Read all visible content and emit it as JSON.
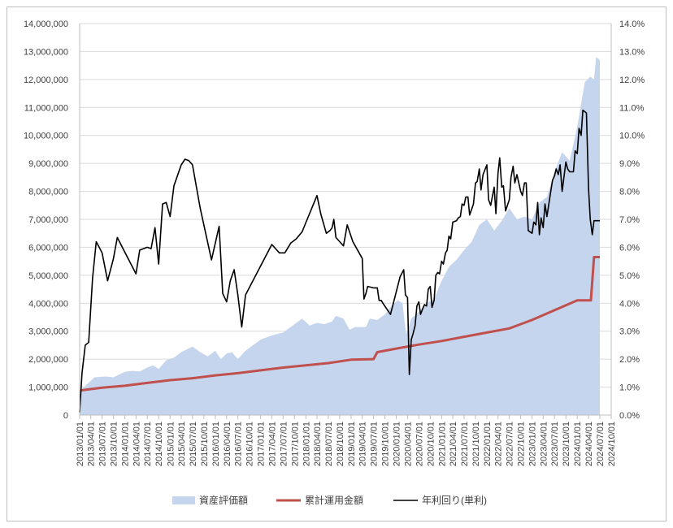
{
  "chart_data": {
    "type": "line",
    "colors": {
      "area": "#c5d5ee",
      "invested": "#c0504d",
      "yield": "#000000",
      "grid": "#d9d9d9",
      "axis": "#bfbfbf"
    },
    "x_range": [
      "2013/01/01",
      "2024/10/01"
    ],
    "x_ticks": [
      "2013/01/01",
      "2013/04/01",
      "2013/07/01",
      "2013/10/01",
      "2014/01/01",
      "2014/04/01",
      "2014/07/01",
      "2014/10/01",
      "2015/01/01",
      "2015/04/01",
      "2015/07/01",
      "2015/10/01",
      "2016/01/01",
      "2016/04/01",
      "2016/07/01",
      "2016/10/01",
      "2017/01/01",
      "2017/04/01",
      "2017/07/01",
      "2017/10/01",
      "2018/01/01",
      "2018/04/01",
      "2018/07/01",
      "2018/10/01",
      "2019/01/01",
      "2019/04/01",
      "2019/07/01",
      "2019/10/01",
      "2020/01/01",
      "2020/04/01",
      "2020/07/01",
      "2020/10/01",
      "2021/01/01",
      "2021/04/01",
      "2021/07/01",
      "2021/10/01",
      "2022/01/01",
      "2022/04/01",
      "2022/07/01",
      "2022/10/01",
      "2023/01/01",
      "2023/04/01",
      "2023/07/01",
      "2023/10/01",
      "2024/01/01",
      "2024/04/01",
      "2024/07/01",
      "2024/10/01"
    ],
    "y_left": {
      "range": [
        0,
        14000000
      ],
      "ticks": [
        "0",
        "1,000,000",
        "2,000,000",
        "3,000,000",
        "4,000,000",
        "5,000,000",
        "6,000,000",
        "7,000,000",
        "8,000,000",
        "9,000,000",
        "10,000,000",
        "11,000,000",
        "12,000,000",
        "13,000,000",
        "14,000,000"
      ]
    },
    "y_right": {
      "range": [
        0,
        14
      ],
      "ticks": [
        "0.0%",
        "1.0%",
        "2.0%",
        "3.0%",
        "4.0%",
        "5.0%",
        "6.0%",
        "7.0%",
        "8.0%",
        "9.0%",
        "10.0%",
        "11.0%",
        "12.0%",
        "13.0%",
        "14.0%"
      ]
    },
    "legend_position": "bottom",
    "series": [
      {
        "name": "資産評価額",
        "kind": "area",
        "axis": "left",
        "points": [
          [
            "2013/01/01",
            850000
          ],
          [
            "2013/03/01",
            1100000
          ],
          [
            "2013/05/01",
            1350000
          ],
          [
            "2013/08/01",
            1380000
          ],
          [
            "2013/10/01",
            1350000
          ],
          [
            "2014/01/01",
            1550000
          ],
          [
            "2014/03/01",
            1580000
          ],
          [
            "2014/05/01",
            1560000
          ],
          [
            "2014/07/01",
            1700000
          ],
          [
            "2014/08/15",
            1780000
          ],
          [
            "2014/10/01",
            1650000
          ],
          [
            "2014/12/01",
            1960000
          ],
          [
            "2015/02/01",
            2050000
          ],
          [
            "2015/04/01",
            2250000
          ],
          [
            "2015/07/01",
            2450000
          ],
          [
            "2015/09/01",
            2250000
          ],
          [
            "2015/11/01",
            2100000
          ],
          [
            "2016/01/01",
            2300000
          ],
          [
            "2016/02/15",
            2000000
          ],
          [
            "2016/04/01",
            2200000
          ],
          [
            "2016/05/15",
            2250000
          ],
          [
            "2016/07/01",
            2000000
          ],
          [
            "2016/09/01",
            2300000
          ],
          [
            "2017/01/01",
            2700000
          ],
          [
            "2017/04/01",
            2850000
          ],
          [
            "2017/07/01",
            2950000
          ],
          [
            "2017/10/01",
            3250000
          ],
          [
            "2017/12/01",
            3450000
          ],
          [
            "2018/02/01",
            3200000
          ],
          [
            "2018/04/01",
            3300000
          ],
          [
            "2018/06/01",
            3250000
          ],
          [
            "2018/08/01",
            3350000
          ],
          [
            "2018/09/01",
            3550000
          ],
          [
            "2018/11/01",
            3450000
          ],
          [
            "2018/12/20",
            3050000
          ],
          [
            "2019/02/01",
            3150000
          ],
          [
            "2019/05/01",
            3150000
          ],
          [
            "2019/06/01",
            3450000
          ],
          [
            "2019/08/01",
            3400000
          ],
          [
            "2019/10/01",
            3600000
          ],
          [
            "2019/12/01",
            3950000
          ],
          [
            "2020/01/15",
            4100000
          ],
          [
            "2020/02/20",
            4000000
          ],
          [
            "2020/03/20",
            2900000
          ],
          [
            "2020/05/01",
            3450000
          ],
          [
            "2020/07/01",
            3700000
          ],
          [
            "2020/09/01",
            4000000
          ],
          [
            "2020/11/01",
            4150000
          ],
          [
            "2021/01/01",
            4800000
          ],
          [
            "2021/03/01",
            5300000
          ],
          [
            "2021/05/01",
            5550000
          ],
          [
            "2021/07/01",
            5900000
          ],
          [
            "2021/09/01",
            6200000
          ],
          [
            "2021/11/01",
            6800000
          ],
          [
            "2022/01/01",
            7000000
          ],
          [
            "2022/03/01",
            6600000
          ],
          [
            "2022/05/01",
            6950000
          ],
          [
            "2022/07/01",
            7400000
          ],
          [
            "2022/09/01",
            7000000
          ],
          [
            "2022/11/01",
            7100000
          ],
          [
            "2023/01/01",
            7000000
          ],
          [
            "2023/03/01",
            7600000
          ],
          [
            "2023/05/01",
            7800000
          ],
          [
            "2023/07/01",
            8700000
          ],
          [
            "2023/09/01",
            9400000
          ],
          [
            "2023/11/01",
            9100000
          ],
          [
            "2024/01/01",
            10300000
          ],
          [
            "2024/03/01",
            11900000
          ],
          [
            "2024/04/15",
            12100000
          ],
          [
            "2024/05/15",
            12000000
          ],
          [
            "2024/06/01",
            12800000
          ],
          [
            "2024/07/01",
            12700000
          ]
        ]
      },
      {
        "name": "累計運用金額",
        "kind": "line",
        "axis": "left",
        "points": [
          [
            "2013/01/01",
            880000
          ],
          [
            "2013/07/01",
            980000
          ],
          [
            "2014/01/01",
            1050000
          ],
          [
            "2014/07/01",
            1150000
          ],
          [
            "2015/01/01",
            1250000
          ],
          [
            "2015/07/01",
            1320000
          ],
          [
            "2016/01/01",
            1420000
          ],
          [
            "2016/07/01",
            1500000
          ],
          [
            "2017/01/01",
            1600000
          ],
          [
            "2017/07/01",
            1700000
          ],
          [
            "2018/01/01",
            1780000
          ],
          [
            "2018/07/01",
            1860000
          ],
          [
            "2019/01/01",
            1980000
          ],
          [
            "2019/07/01",
            2000000
          ],
          [
            "2019/08/01",
            2250000
          ],
          [
            "2020/01/01",
            2380000
          ],
          [
            "2020/07/01",
            2520000
          ],
          [
            "2021/01/01",
            2650000
          ],
          [
            "2021/07/01",
            2800000
          ],
          [
            "2022/01/01",
            2950000
          ],
          [
            "2022/07/01",
            3100000
          ],
          [
            "2023/01/01",
            3400000
          ],
          [
            "2023/07/01",
            3750000
          ],
          [
            "2024/01/01",
            4100000
          ],
          [
            "2024/04/20",
            4100000
          ],
          [
            "2024/05/15",
            5650000
          ],
          [
            "2024/07/01",
            5650000
          ]
        ]
      },
      {
        "name": "年利回り(単利)",
        "kind": "line",
        "axis": "right",
        "points": [
          [
            "2013/01/01",
            0.1
          ],
          [
            "2013/01/20",
            1.5
          ],
          [
            "2013/02/15",
            2.5
          ],
          [
            "2013/03/15",
            2.6
          ],
          [
            "2013/04/15",
            4.9
          ],
          [
            "2013/05/15",
            6.2
          ],
          [
            "2013/07/01",
            5.8
          ],
          [
            "2013/08/15",
            4.8
          ],
          [
            "2013/10/01",
            5.6
          ],
          [
            "2013/11/01",
            6.35
          ],
          [
            "2014/04/01",
            5.05
          ],
          [
            "2014/05/01",
            5.9
          ],
          [
            "2014/07/01",
            6.0
          ],
          [
            "2014/08/01",
            5.95
          ],
          [
            "2014/09/01",
            6.7
          ],
          [
            "2014/10/01",
            5.4
          ],
          [
            "2014/11/01",
            7.55
          ],
          [
            "2014/12/01",
            7.6
          ],
          [
            "2015/01/01",
            7.1
          ],
          [
            "2015/02/01",
            8.2
          ],
          [
            "2015/04/01",
            8.95
          ],
          [
            "2015/05/01",
            9.15
          ],
          [
            "2015/06/01",
            9.1
          ],
          [
            "2015/07/01",
            8.95
          ],
          [
            "2015/09/01",
            7.4
          ],
          [
            "2015/12/01",
            5.55
          ],
          [
            "2016/02/01",
            6.75
          ],
          [
            "2016/03/01",
            4.35
          ],
          [
            "2016/04/01",
            4.05
          ],
          [
            "2016/05/01",
            4.8
          ],
          [
            "2016/06/01",
            5.2
          ],
          [
            "2016/07/01",
            4.3
          ],
          [
            "2016/08/01",
            3.15
          ],
          [
            "2016/09/01",
            4.3
          ],
          [
            "2017/04/01",
            6.1
          ],
          [
            "2017/06/01",
            5.8
          ],
          [
            "2017/07/15",
            5.8
          ],
          [
            "2017/09/01",
            6.15
          ],
          [
            "2017/10/15",
            6.3
          ],
          [
            "2017/12/01",
            6.55
          ],
          [
            "2018/04/01",
            7.85
          ],
          [
            "2018/05/01",
            7.2
          ],
          [
            "2018/06/15",
            6.5
          ],
          [
            "2018/07/15",
            6.6
          ],
          [
            "2018/08/01",
            6.7
          ],
          [
            "2018/08/15",
            7.0
          ],
          [
            "2018/09/01",
            6.35
          ],
          [
            "2018/10/01",
            6.2
          ],
          [
            "2018/11/01",
            6.05
          ],
          [
            "2018/12/01",
            6.8
          ],
          [
            "2019/01/15",
            6.2
          ],
          [
            "2019/04/01",
            5.6
          ],
          [
            "2019/04/15",
            4.15
          ],
          [
            "2019/05/01",
            4.35
          ],
          [
            "2019/05/15",
            4.6
          ],
          [
            "2019/07/01",
            4.55
          ],
          [
            "2019/08/01",
            4.55
          ],
          [
            "2019/08/15",
            4.1
          ],
          [
            "2019/09/01",
            4.1
          ],
          [
            "2019/09/15",
            4.0
          ],
          [
            "2019/11/15",
            3.6
          ],
          [
            "2020/02/01",
            4.95
          ],
          [
            "2020/03/01",
            5.2
          ],
          [
            "2020/03/15",
            4.3
          ],
          [
            "2020/04/01",
            4.2
          ],
          [
            "2020/04/15",
            1.45
          ],
          [
            "2020/05/01",
            2.7
          ],
          [
            "2020/05/15",
            2.9
          ],
          [
            "2020/06/01",
            3.2
          ],
          [
            "2020/06/15",
            3.9
          ],
          [
            "2020/07/01",
            4.05
          ],
          [
            "2020/07/15",
            3.6
          ],
          [
            "2020/08/01",
            3.8
          ],
          [
            "2020/08/15",
            3.95
          ],
          [
            "2020/09/01",
            3.9
          ],
          [
            "2020/09/15",
            4.5
          ],
          [
            "2020/10/01",
            4.6
          ],
          [
            "2020/10/15",
            3.85
          ],
          [
            "2020/11/01",
            4.1
          ],
          [
            "2020/11/15",
            5.0
          ],
          [
            "2020/12/01",
            5.1
          ],
          [
            "2020/12/15",
            5.05
          ],
          [
            "2021/01/01",
            5.5
          ],
          [
            "2021/01/15",
            5.4
          ],
          [
            "2021/02/01",
            5.8
          ],
          [
            "2021/02/15",
            5.9
          ],
          [
            "2021/03/01",
            6.4
          ],
          [
            "2021/03/15",
            6.3
          ],
          [
            "2021/04/01",
            6.9
          ],
          [
            "2021/05/01",
            6.95
          ],
          [
            "2021/05/15",
            7.05
          ],
          [
            "2021/06/01",
            7.1
          ],
          [
            "2021/06/15",
            7.55
          ],
          [
            "2021/07/01",
            7.5
          ],
          [
            "2021/07/15",
            7.8
          ],
          [
            "2021/08/01",
            7.8
          ],
          [
            "2021/08/15",
            7.15
          ],
          [
            "2021/09/15",
            7.55
          ],
          [
            "2021/10/01",
            8.3
          ],
          [
            "2021/10/15",
            8.35
          ],
          [
            "2021/11/01",
            8.8
          ],
          [
            "2021/11/15",
            8.05
          ],
          [
            "2021/12/01",
            8.6
          ],
          [
            "2022/01/01",
            8.95
          ],
          [
            "2022/01/15",
            7.7
          ],
          [
            "2022/02/01",
            7.5
          ],
          [
            "2022/03/01",
            8.15
          ],
          [
            "2022/03/15",
            7.2
          ],
          [
            "2022/04/01",
            8.65
          ],
          [
            "2022/04/15",
            9.2
          ],
          [
            "2022/05/01",
            8.15
          ],
          [
            "2022/05/15",
            8.2
          ],
          [
            "2022/06/01",
            7.3
          ],
          [
            "2022/07/01",
            7.7
          ],
          [
            "2022/07/15",
            8.5
          ],
          [
            "2022/08/01",
            8.9
          ],
          [
            "2022/08/15",
            8.3
          ],
          [
            "2022/09/01",
            8.6
          ],
          [
            "2022/10/01",
            8.0
          ],
          [
            "2022/10/15",
            7.85
          ],
          [
            "2022/11/01",
            8.3
          ],
          [
            "2022/11/15",
            8.3
          ],
          [
            "2022/12/01",
            6.6
          ],
          [
            "2023/01/01",
            6.5
          ],
          [
            "2023/01/15",
            6.9
          ],
          [
            "2023/02/01",
            6.8
          ],
          [
            "2023/02/15",
            7.6
          ],
          [
            "2023/03/01",
            6.45
          ],
          [
            "2023/03/15",
            7.05
          ],
          [
            "2023/04/01",
            6.7
          ],
          [
            "2023/04/15",
            7.55
          ],
          [
            "2023/05/01",
            7.1
          ],
          [
            "2023/06/01",
            8.0
          ],
          [
            "2023/06/15",
            8.4
          ],
          [
            "2023/07/01",
            8.55
          ],
          [
            "2023/07/15",
            8.8
          ],
          [
            "2023/08/01",
            8.6
          ],
          [
            "2023/08/15",
            8.95
          ],
          [
            "2023/09/01",
            8.0
          ],
          [
            "2023/10/01",
            9.05
          ],
          [
            "2023/10/15",
            8.8
          ],
          [
            "2023/11/01",
            8.7
          ],
          [
            "2023/12/01",
            8.7
          ],
          [
            "2023/12/15",
            9.45
          ],
          [
            "2024/01/01",
            9.35
          ],
          [
            "2024/01/15",
            10.25
          ],
          [
            "2024/02/01",
            10.0
          ],
          [
            "2024/02/15",
            10.9
          ],
          [
            "2024/03/01",
            10.85
          ],
          [
            "2024/03/15",
            10.8
          ],
          [
            "2024/04/01",
            8.1
          ],
          [
            "2024/04/15",
            7.0
          ],
          [
            "2024/05/01",
            6.45
          ],
          [
            "2024/05/15",
            6.95
          ],
          [
            "2024/07/01",
            6.95
          ]
        ]
      }
    ]
  }
}
